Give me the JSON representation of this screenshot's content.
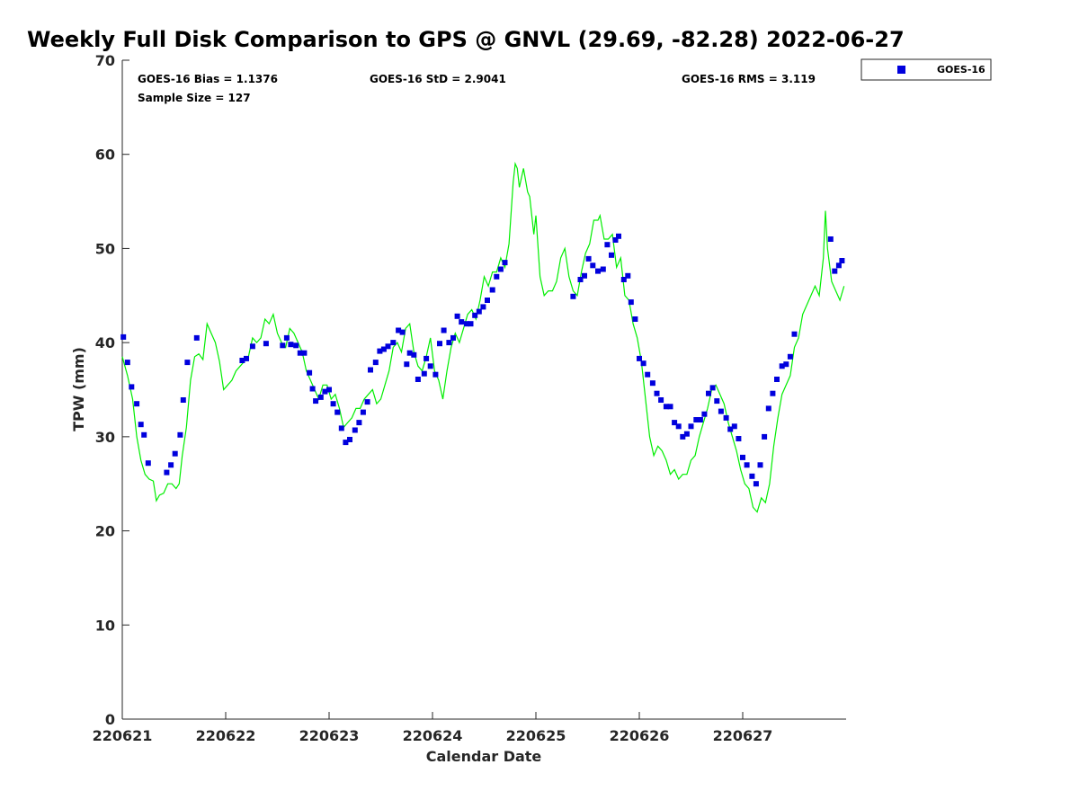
{
  "chart_data": {
    "type": "scatter",
    "title": "Weekly Full Disk Comparison to GPS @ GNVL (29.69, -82.28) 2022-06-27",
    "xlabel": "Calendar Date",
    "ylabel": "TPW (mm)",
    "xlim": [
      0,
      6.98
    ],
    "ylim": [
      0,
      70
    ],
    "x_tick_labels": [
      "220621",
      "220622",
      "220623",
      "220624",
      "220625",
      "220626",
      "220627"
    ],
    "y_ticks": [
      0,
      10,
      20,
      30,
      40,
      50,
      60,
      70
    ],
    "grid": false,
    "legend_position": "top-right",
    "stats": {
      "bias": "GOES-16 Bias = 1.1376",
      "std": "GOES-16 StD = 2.9041",
      "rms": "GOES-16 RMS = 3.119",
      "sample": "Sample Size = 127"
    },
    "series": [
      {
        "name": "GOES-16",
        "kind": "scatter",
        "color": "#0000dd",
        "points": [
          [
            0.01,
            40.6
          ],
          [
            0.05,
            37.9
          ],
          [
            0.09,
            35.3
          ],
          [
            0.14,
            33.5
          ],
          [
            0.18,
            31.3
          ],
          [
            0.21,
            30.2
          ],
          [
            0.25,
            27.2
          ],
          [
            0.43,
            26.2
          ],
          [
            0.47,
            27.0
          ],
          [
            0.51,
            28.2
          ],
          [
            0.56,
            30.2
          ],
          [
            0.59,
            33.9
          ],
          [
            0.63,
            37.9
          ],
          [
            0.72,
            40.5
          ],
          [
            1.16,
            38.1
          ],
          [
            1.2,
            38.3
          ],
          [
            1.26,
            39.6
          ],
          [
            1.39,
            39.9
          ],
          [
            1.55,
            39.7
          ],
          [
            1.59,
            40.5
          ],
          [
            1.63,
            39.8
          ],
          [
            1.68,
            39.7
          ],
          [
            1.72,
            38.9
          ],
          [
            1.76,
            38.9
          ],
          [
            1.81,
            36.8
          ],
          [
            1.84,
            35.1
          ],
          [
            1.87,
            33.8
          ],
          [
            1.92,
            34.2
          ],
          [
            1.96,
            34.8
          ],
          [
            2.0,
            35.0
          ],
          [
            2.04,
            33.5
          ],
          [
            2.08,
            32.6
          ],
          [
            2.12,
            30.9
          ],
          [
            2.16,
            29.4
          ],
          [
            2.2,
            29.7
          ],
          [
            2.25,
            30.7
          ],
          [
            2.29,
            31.5
          ],
          [
            2.33,
            32.6
          ],
          [
            2.37,
            33.7
          ],
          [
            2.4,
            37.1
          ],
          [
            2.45,
            37.9
          ],
          [
            2.49,
            39.1
          ],
          [
            2.53,
            39.3
          ],
          [
            2.57,
            39.6
          ],
          [
            2.62,
            40.0
          ],
          [
            2.67,
            41.3
          ],
          [
            2.71,
            41.1
          ],
          [
            2.75,
            37.7
          ],
          [
            2.78,
            38.9
          ],
          [
            2.82,
            38.7
          ],
          [
            2.86,
            36.1
          ],
          [
            2.92,
            36.7
          ],
          [
            2.94,
            38.3
          ],
          [
            2.98,
            37.5
          ],
          [
            3.03,
            36.6
          ],
          [
            3.07,
            39.9
          ],
          [
            3.11,
            41.3
          ],
          [
            3.16,
            40.0
          ],
          [
            3.2,
            40.5
          ],
          [
            3.24,
            42.8
          ],
          [
            3.28,
            42.2
          ],
          [
            3.33,
            42.0
          ],
          [
            3.37,
            42.0
          ],
          [
            3.41,
            42.9
          ],
          [
            3.45,
            43.3
          ],
          [
            3.49,
            43.8
          ],
          [
            3.53,
            44.5
          ],
          [
            3.58,
            45.6
          ],
          [
            3.62,
            47.0
          ],
          [
            3.66,
            47.8
          ],
          [
            3.7,
            48.5
          ],
          [
            4.36,
            44.9
          ],
          [
            4.43,
            46.7
          ],
          [
            4.47,
            47.1
          ],
          [
            4.51,
            48.9
          ],
          [
            4.55,
            48.2
          ],
          [
            4.6,
            47.6
          ],
          [
            4.65,
            47.8
          ],
          [
            4.69,
            50.4
          ],
          [
            4.73,
            49.3
          ],
          [
            4.77,
            50.9
          ],
          [
            4.8,
            51.3
          ],
          [
            4.85,
            46.7
          ],
          [
            4.89,
            47.1
          ],
          [
            4.92,
            44.3
          ],
          [
            4.96,
            42.5
          ],
          [
            5.0,
            38.3
          ],
          [
            5.04,
            37.8
          ],
          [
            5.08,
            36.6
          ],
          [
            5.13,
            35.7
          ],
          [
            5.17,
            34.6
          ],
          [
            5.21,
            33.9
          ],
          [
            5.26,
            33.2
          ],
          [
            5.3,
            33.2
          ],
          [
            5.34,
            31.5
          ],
          [
            5.38,
            31.1
          ],
          [
            5.42,
            30.0
          ],
          [
            5.46,
            30.3
          ],
          [
            5.5,
            31.1
          ],
          [
            5.55,
            31.8
          ],
          [
            5.59,
            31.8
          ],
          [
            5.63,
            32.4
          ],
          [
            5.67,
            34.6
          ],
          [
            5.71,
            35.2
          ],
          [
            5.75,
            33.8
          ],
          [
            5.79,
            32.7
          ],
          [
            5.84,
            32.0
          ],
          [
            5.88,
            30.8
          ],
          [
            5.92,
            31.1
          ],
          [
            5.96,
            29.8
          ],
          [
            6.0,
            27.8
          ],
          [
            6.04,
            27.0
          ],
          [
            6.09,
            25.8
          ],
          [
            6.13,
            25.0
          ],
          [
            6.17,
            27.0
          ],
          [
            6.21,
            30.0
          ],
          [
            6.25,
            33.0
          ],
          [
            6.29,
            34.6
          ],
          [
            6.33,
            36.1
          ],
          [
            6.38,
            37.5
          ],
          [
            6.42,
            37.7
          ],
          [
            6.46,
            38.5
          ],
          [
            6.5,
            40.9
          ],
          [
            6.85,
            51.0
          ],
          [
            6.89,
            47.6
          ],
          [
            6.93,
            48.2
          ],
          [
            6.96,
            48.7
          ]
        ]
      },
      {
        "kind": "line",
        "color": "#00ee00",
        "points": [
          [
            0.0,
            38.5
          ],
          [
            0.05,
            36.5
          ],
          [
            0.1,
            34.0
          ],
          [
            0.14,
            30.0
          ],
          [
            0.18,
            27.5
          ],
          [
            0.22,
            26.0
          ],
          [
            0.26,
            25.5
          ],
          [
            0.3,
            25.3
          ],
          [
            0.33,
            23.2
          ],
          [
            0.36,
            23.8
          ],
          [
            0.4,
            24.0
          ],
          [
            0.44,
            25.0
          ],
          [
            0.48,
            25.0
          ],
          [
            0.52,
            24.5
          ],
          [
            0.55,
            25.0
          ],
          [
            0.58,
            28.0
          ],
          [
            0.62,
            31.0
          ],
          [
            0.66,
            36.0
          ],
          [
            0.7,
            38.5
          ],
          [
            0.74,
            38.8
          ],
          [
            0.78,
            38.2
          ],
          [
            0.82,
            42.0
          ],
          [
            0.86,
            41.0
          ],
          [
            0.9,
            40.0
          ],
          [
            0.94,
            38.0
          ],
          [
            0.98,
            35.0
          ],
          [
            1.02,
            35.5
          ],
          [
            1.06,
            36.0
          ],
          [
            1.1,
            37.0
          ],
          [
            1.14,
            37.5
          ],
          [
            1.18,
            38.0
          ],
          [
            1.22,
            38.5
          ],
          [
            1.26,
            40.5
          ],
          [
            1.3,
            40.0
          ],
          [
            1.34,
            40.5
          ],
          [
            1.38,
            42.5
          ],
          [
            1.42,
            42.0
          ],
          [
            1.46,
            43.0
          ],
          [
            1.5,
            41.0
          ],
          [
            1.54,
            40.0
          ],
          [
            1.58,
            39.5
          ],
          [
            1.62,
            41.5
          ],
          [
            1.66,
            41.0
          ],
          [
            1.7,
            40.0
          ],
          [
            1.74,
            39.0
          ],
          [
            1.78,
            37.0
          ],
          [
            1.82,
            36.0
          ],
          [
            1.86,
            35.0
          ],
          [
            1.9,
            34.0
          ],
          [
            1.94,
            35.5
          ],
          [
            1.98,
            35.5
          ],
          [
            2.02,
            34.0
          ],
          [
            2.06,
            34.5
          ],
          [
            2.1,
            33.0
          ],
          [
            2.14,
            31.0
          ],
          [
            2.18,
            31.5
          ],
          [
            2.22,
            32.0
          ],
          [
            2.26,
            33.0
          ],
          [
            2.3,
            33.0
          ],
          [
            2.34,
            34.0
          ],
          [
            2.38,
            34.5
          ],
          [
            2.42,
            35.0
          ],
          [
            2.46,
            33.5
          ],
          [
            2.5,
            34.0
          ],
          [
            2.54,
            35.5
          ],
          [
            2.58,
            37.0
          ],
          [
            2.62,
            39.5
          ],
          [
            2.66,
            40.0
          ],
          [
            2.7,
            39.0
          ],
          [
            2.74,
            41.5
          ],
          [
            2.78,
            42.0
          ],
          [
            2.82,
            39.0
          ],
          [
            2.86,
            37.5
          ],
          [
            2.9,
            37.0
          ],
          [
            2.94,
            38.5
          ],
          [
            2.98,
            40.5
          ],
          [
            3.02,
            37.0
          ],
          [
            3.06,
            36.0
          ],
          [
            3.1,
            34.0
          ],
          [
            3.14,
            37.0
          ],
          [
            3.18,
            39.5
          ],
          [
            3.22,
            41.0
          ],
          [
            3.26,
            40.0
          ],
          [
            3.3,
            41.5
          ],
          [
            3.34,
            43.0
          ],
          [
            3.38,
            43.5
          ],
          [
            3.42,
            42.5
          ],
          [
            3.46,
            44.5
          ],
          [
            3.5,
            47.0
          ],
          [
            3.54,
            46.0
          ],
          [
            3.58,
            47.5
          ],
          [
            3.62,
            47.5
          ],
          [
            3.66,
            49.0
          ],
          [
            3.7,
            48.0
          ],
          [
            3.74,
            50.5
          ],
          [
            3.78,
            57.0
          ],
          [
            3.8,
            59.0
          ],
          [
            3.82,
            58.5
          ],
          [
            3.84,
            56.5
          ],
          [
            3.88,
            58.5
          ],
          [
            3.92,
            56.0
          ],
          [
            3.94,
            55.5
          ],
          [
            3.98,
            51.5
          ],
          [
            4.0,
            53.5
          ],
          [
            4.04,
            47.0
          ],
          [
            4.08,
            45.0
          ],
          [
            4.12,
            45.5
          ],
          [
            4.16,
            45.5
          ],
          [
            4.2,
            46.5
          ],
          [
            4.24,
            49.0
          ],
          [
            4.28,
            50.0
          ],
          [
            4.32,
            47.0
          ],
          [
            4.36,
            45.5
          ],
          [
            4.4,
            45.0
          ],
          [
            4.44,
            47.5
          ],
          [
            4.48,
            49.5
          ],
          [
            4.52,
            50.5
          ],
          [
            4.56,
            53.0
          ],
          [
            4.6,
            53.0
          ],
          [
            4.62,
            53.5
          ],
          [
            4.66,
            51.0
          ],
          [
            4.7,
            51.0
          ],
          [
            4.74,
            51.5
          ],
          [
            4.78,
            48.0
          ],
          [
            4.82,
            49.0
          ],
          [
            4.86,
            45.0
          ],
          [
            4.9,
            44.5
          ],
          [
            4.94,
            42.0
          ],
          [
            4.98,
            40.5
          ],
          [
            5.02,
            38.0
          ],
          [
            5.06,
            34.0
          ],
          [
            5.1,
            30.0
          ],
          [
            5.14,
            28.0
          ],
          [
            5.18,
            29.0
          ],
          [
            5.22,
            28.5
          ],
          [
            5.26,
            27.5
          ],
          [
            5.3,
            26.0
          ],
          [
            5.34,
            26.5
          ],
          [
            5.38,
            25.5
          ],
          [
            5.42,
            26.0
          ],
          [
            5.46,
            26.0
          ],
          [
            5.5,
            27.5
          ],
          [
            5.54,
            28.0
          ],
          [
            5.58,
            30.0
          ],
          [
            5.62,
            31.5
          ],
          [
            5.66,
            33.0
          ],
          [
            5.7,
            35.0
          ],
          [
            5.74,
            35.5
          ],
          [
            5.78,
            34.5
          ],
          [
            5.82,
            33.5
          ],
          [
            5.86,
            31.5
          ],
          [
            5.9,
            30.0
          ],
          [
            5.94,
            28.5
          ],
          [
            5.98,
            26.5
          ],
          [
            6.02,
            25.0
          ],
          [
            6.06,
            24.5
          ],
          [
            6.1,
            22.5
          ],
          [
            6.14,
            22.0
          ],
          [
            6.18,
            23.5
          ],
          [
            6.22,
            23.0
          ],
          [
            6.26,
            25.0
          ],
          [
            6.3,
            29.0
          ],
          [
            6.34,
            32.0
          ],
          [
            6.38,
            34.5
          ],
          [
            6.42,
            35.5
          ],
          [
            6.46,
            36.5
          ],
          [
            6.5,
            39.5
          ],
          [
            6.54,
            40.5
          ],
          [
            6.58,
            43.0
          ],
          [
            6.62,
            44.0
          ],
          [
            6.66,
            45.0
          ],
          [
            6.7,
            46.0
          ],
          [
            6.74,
            45.0
          ],
          [
            6.78,
            49.0
          ],
          [
            6.8,
            54.0
          ],
          [
            6.82,
            50.0
          ],
          [
            6.86,
            46.5
          ],
          [
            6.9,
            45.5
          ],
          [
            6.94,
            44.5
          ],
          [
            6.98,
            46.0
          ]
        ]
      }
    ]
  }
}
